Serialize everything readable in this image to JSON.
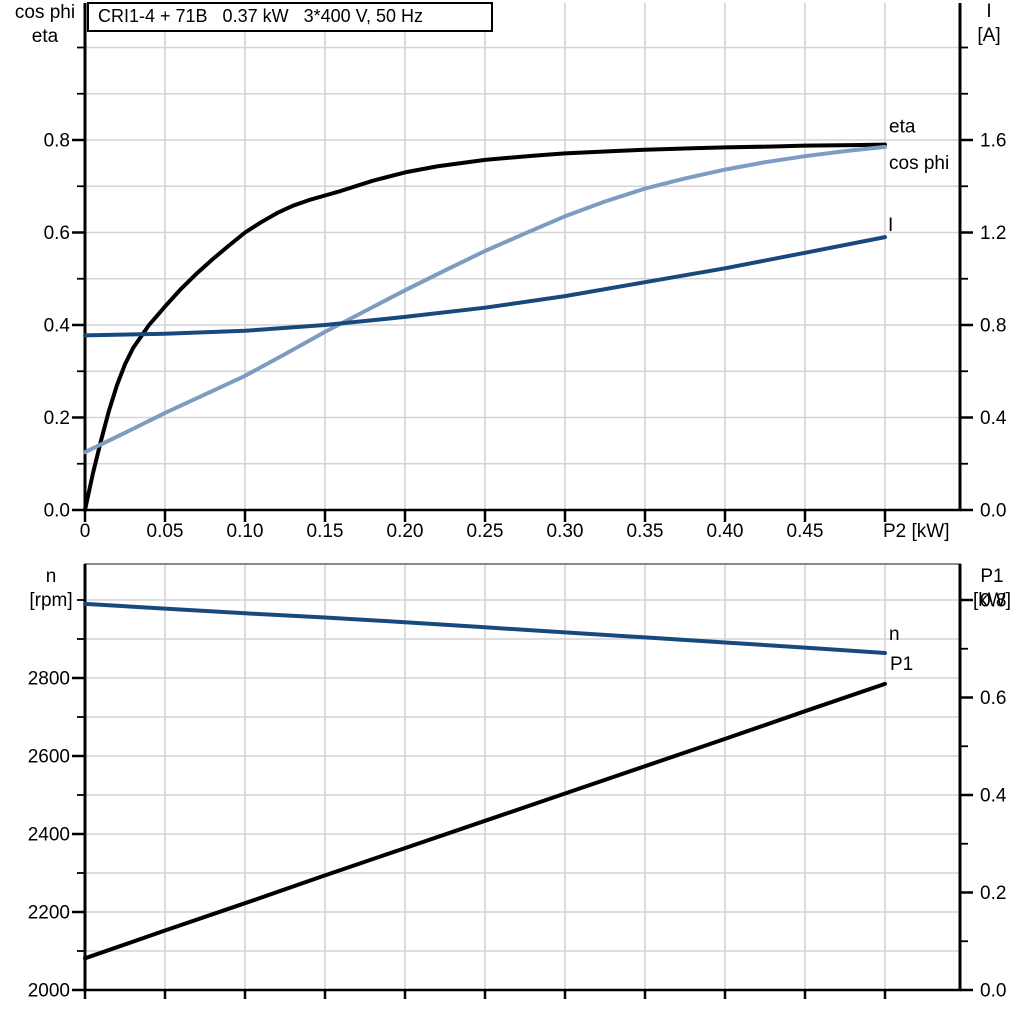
{
  "title_box": {
    "text": "CRI1-4 + 71B   0.37 kW   3*400 V, 50 Hz"
  },
  "colors": {
    "black": "#000000",
    "cos_phi": "#7d9cc2",
    "current": "#17497c",
    "grid": "#d4d4d4",
    "axis": "#000000",
    "panel_top_border": "#8a8a8a"
  },
  "top_chart_headers": {
    "left_line1": "cos phi",
    "left_line2": "eta",
    "right_line1": "I",
    "right_line2": "[A]"
  },
  "bottom_chart_headers": {
    "left_line1": "n",
    "left_line2": "[rpm]",
    "right_line1": "P1",
    "right_line2": "[kW]"
  },
  "chart_data": [
    {
      "type": "line",
      "title": "CRI1-4 + 71B   0.37 kW   3*400 V, 50 Hz",
      "xlabel": "P2 [kW]",
      "legend_position": "curve-end-labels",
      "grid": "on",
      "x_axis": {
        "range": [
          0,
          0.547
        ],
        "tick_values": [
          0,
          0.05,
          0.1,
          0.15,
          0.2,
          0.25,
          0.3,
          0.35,
          0.4,
          0.45,
          0.5
        ],
        "labels": [
          {
            "v": 0,
            "t": "0"
          },
          {
            "v": 0.05,
            "t": "0.05"
          },
          {
            "v": 0.1,
            "t": "0.10"
          },
          {
            "v": 0.15,
            "t": "0.15"
          },
          {
            "v": 0.2,
            "t": "0.20"
          },
          {
            "v": 0.25,
            "t": "0.25"
          },
          {
            "v": 0.3,
            "t": "0.30"
          },
          {
            "v": 0.35,
            "t": "0.35"
          },
          {
            "v": 0.4,
            "t": "0.40"
          },
          {
            "v": 0.45,
            "t": "0.45"
          }
        ],
        "unit_label": {
          "v": 0.5,
          "t": "P2 [kW]"
        },
        "grid": [
          0.05,
          0.1,
          0.15,
          0.2,
          0.25,
          0.3,
          0.35,
          0.4,
          0.45,
          0.5
        ]
      },
      "left_axis": {
        "label": "cos phi / eta",
        "range": [
          0,
          1.095
        ],
        "ticks": [
          {
            "v": 0,
            "t": "0.0"
          },
          {
            "v": 0.2,
            "t": "0.2"
          },
          {
            "v": 0.4,
            "t": "0.4"
          },
          {
            "v": 0.6,
            "t": "0.6"
          },
          {
            "v": 0.8,
            "t": "0.8"
          }
        ],
        "minor_ticks": [
          0.1,
          0.3,
          0.5,
          0.7,
          0.9,
          1.0
        ],
        "grid": [
          0.1,
          0.2,
          0.3,
          0.4,
          0.5,
          0.6,
          0.7,
          0.8,
          0.9,
          1.0
        ]
      },
      "right_axis": {
        "label": "I [A]",
        "range": [
          0,
          2.19
        ],
        "ticks": [
          {
            "v": 0,
            "t": "0.0"
          },
          {
            "v": 0.4,
            "t": "0.4"
          },
          {
            "v": 0.8,
            "t": "0.8"
          },
          {
            "v": 1.2,
            "t": "1.2"
          },
          {
            "v": 1.6,
            "t": "1.6"
          }
        ],
        "minor_ticks": [
          0.2,
          0.6,
          1.0,
          1.4,
          1.8,
          2.0
        ]
      },
      "series": [
        {
          "name": "eta",
          "axis": "left",
          "color": "black",
          "points": [
            [
              0,
              0
            ],
            [
              0.005,
              0.08
            ],
            [
              0.01,
              0.15
            ],
            [
              0.015,
              0.215
            ],
            [
              0.02,
              0.27
            ],
            [
              0.025,
              0.315
            ],
            [
              0.03,
              0.35
            ],
            [
              0.035,
              0.375
            ],
            [
              0.04,
              0.4
            ],
            [
              0.045,
              0.42
            ],
            [
              0.05,
              0.44
            ],
            [
              0.06,
              0.478
            ],
            [
              0.07,
              0.512
            ],
            [
              0.08,
              0.543
            ],
            [
              0.09,
              0.572
            ],
            [
              0.1,
              0.6
            ],
            [
              0.11,
              0.622
            ],
            [
              0.12,
              0.642
            ],
            [
              0.13,
              0.658
            ],
            [
              0.14,
              0.67
            ],
            [
              0.15,
              0.68
            ],
            [
              0.16,
              0.69
            ],
            [
              0.18,
              0.712
            ],
            [
              0.2,
              0.73
            ],
            [
              0.22,
              0.743
            ],
            [
              0.25,
              0.757
            ],
            [
              0.28,
              0.766
            ],
            [
              0.3,
              0.771
            ],
            [
              0.33,
              0.776
            ],
            [
              0.35,
              0.779
            ],
            [
              0.38,
              0.782
            ],
            [
              0.4,
              0.784
            ],
            [
              0.43,
              0.786
            ],
            [
              0.45,
              0.788
            ],
            [
              0.48,
              0.789
            ],
            [
              0.5,
              0.79
            ]
          ]
        },
        {
          "name": "cos phi",
          "axis": "left",
          "color": "cos_phi",
          "points": [
            [
              0,
              0.125
            ],
            [
              0.025,
              0.167
            ],
            [
              0.05,
              0.21
            ],
            [
              0.075,
              0.25
            ],
            [
              0.1,
              0.29
            ],
            [
              0.125,
              0.337
            ],
            [
              0.15,
              0.385
            ],
            [
              0.175,
              0.43
            ],
            [
              0.2,
              0.475
            ],
            [
              0.225,
              0.518
            ],
            [
              0.25,
              0.56
            ],
            [
              0.275,
              0.598
            ],
            [
              0.3,
              0.635
            ],
            [
              0.325,
              0.667
            ],
            [
              0.35,
              0.695
            ],
            [
              0.375,
              0.717
            ],
            [
              0.4,
              0.736
            ],
            [
              0.425,
              0.752
            ],
            [
              0.45,
              0.765
            ],
            [
              0.475,
              0.776
            ],
            [
              0.5,
              0.785
            ]
          ]
        },
        {
          "name": "I",
          "axis": "right",
          "color": "current",
          "points": [
            [
              0,
              0.755
            ],
            [
              0.05,
              0.762
            ],
            [
              0.1,
              0.775
            ],
            [
              0.15,
              0.8
            ],
            [
              0.2,
              0.835
            ],
            [
              0.25,
              0.875
            ],
            [
              0.3,
              0.925
            ],
            [
              0.35,
              0.985
            ],
            [
              0.4,
              1.045
            ],
            [
              0.45,
              1.112
            ],
            [
              0.5,
              1.18
            ]
          ]
        }
      ]
    },
    {
      "type": "line",
      "title": "",
      "xlabel": "",
      "legend_position": "curve-end-labels",
      "grid": "on",
      "x_axis": {
        "range": [
          0,
          0.547
        ],
        "tick_values": [
          0,
          0.05,
          0.1,
          0.15,
          0.2,
          0.25,
          0.3,
          0.35,
          0.4,
          0.45,
          0.5
        ],
        "labels": [],
        "grid": [
          0.05,
          0.1,
          0.15,
          0.2,
          0.25,
          0.3,
          0.35,
          0.4,
          0.45,
          0.5
        ]
      },
      "left_axis": {
        "label": "n [rpm]",
        "range": [
          2000,
          3087
        ],
        "ticks": [
          {
            "v": 2000,
            "t": "2000"
          },
          {
            "v": 2200,
            "t": "2200"
          },
          {
            "v": 2400,
            "t": "2400"
          },
          {
            "v": 2600,
            "t": "2600"
          },
          {
            "v": 2800,
            "t": "2800"
          }
        ],
        "minor_ticks": [
          2100,
          2300,
          2500,
          2700,
          2900,
          3000
        ],
        "grid": [
          2100,
          2200,
          2300,
          2400,
          2500,
          2600,
          2700,
          2800,
          2900,
          3000
        ]
      },
      "right_axis": {
        "label": "P1 [kW]",
        "range": [
          0,
          1.087
        ],
        "ticks": [
          {
            "v": 0,
            "t": "0.0"
          },
          {
            "v": 0.2,
            "t": "0.2"
          },
          {
            "v": 0.4,
            "t": "0.4"
          },
          {
            "v": 0.6,
            "t": "0.6"
          },
          {
            "v": 0.8,
            "t": "0.8"
          }
        ],
        "minor_ticks": [
          0.1,
          0.3,
          0.5,
          0.7,
          0.9,
          1.0
        ]
      },
      "series": [
        {
          "name": "n",
          "axis": "left",
          "color": "current",
          "points": [
            [
              0,
              2990
            ],
            [
              0.05,
              2978
            ],
            [
              0.1,
              2966
            ],
            [
              0.15,
              2955
            ],
            [
              0.2,
              2943
            ],
            [
              0.25,
              2930
            ],
            [
              0.3,
              2917
            ],
            [
              0.35,
              2904
            ],
            [
              0.4,
              2891
            ],
            [
              0.45,
              2878
            ],
            [
              0.5,
              2864
            ]
          ]
        },
        {
          "name": "P1",
          "axis": "right",
          "color": "black",
          "points": [
            [
              0,
              0.065
            ],
            [
              0.05,
              0.122
            ],
            [
              0.1,
              0.178
            ],
            [
              0.15,
              0.235
            ],
            [
              0.2,
              0.291
            ],
            [
              0.25,
              0.347
            ],
            [
              0.3,
              0.403
            ],
            [
              0.35,
              0.459
            ],
            [
              0.4,
              0.515
            ],
            [
              0.45,
              0.572
            ],
            [
              0.5,
              0.628
            ]
          ]
        }
      ]
    }
  ]
}
